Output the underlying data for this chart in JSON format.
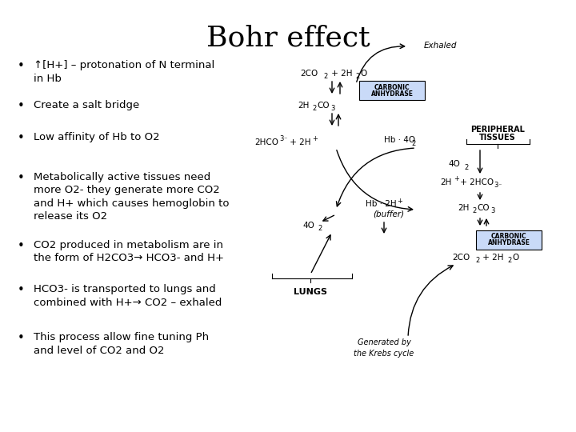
{
  "title": "Bohr effect",
  "title_fontsize": 26,
  "title_font": "serif",
  "background_color": "#ffffff",
  "text_color": "#000000",
  "bullet_points": [
    "↑[H+] – protonation of N terminal\nin Hb",
    "Create a salt bridge",
    "Low affinity of Hb to O2",
    "Metabolically active tissues need\nmore O2- they generate more CO2\nand H+ which causes hemoglobin to\nrelease its O2",
    "CO2 produced in metabolism are in\nthe form of H2CO3→ HCO3- and H+",
    "HCO3- is transported to lungs and\ncombined with H+→ CO2 – exhaled",
    "This process allow fine tuning Ph\nand level of CO2 and O2"
  ],
  "bullet_fontsize": 9.5,
  "diagram_box_color": "#c9daf8",
  "diagram_box_edge": "#000000"
}
